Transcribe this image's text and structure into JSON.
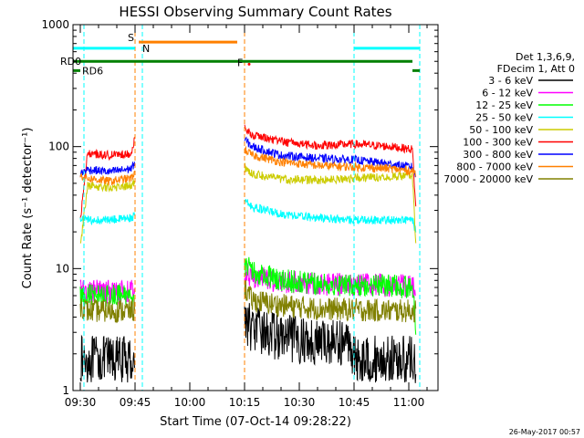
{
  "chart_data": {
    "type": "line",
    "title": "HESSI Observing Summary Count Rates",
    "xlabel": "Start Time (07-Oct-14 09:28:22)",
    "ylabel": "Count Rate (s⁻¹ detector⁻¹)",
    "y_scale": "log",
    "ylim": [
      1,
      1000
    ],
    "xlim": [
      "09:28",
      "11:08"
    ],
    "x_ticks": [
      "09:30",
      "09:45",
      "10:00",
      "10:15",
      "10:30",
      "10:45",
      "11:00"
    ],
    "y_ticks": [
      "1",
      "10",
      "100",
      "1000"
    ],
    "timestamp": "26-May-2017 00:57",
    "legend_header": [
      "Det 1,3,6,9,",
      "FDecim 1, Att 0"
    ],
    "colors": {
      "3 - 6 keV": "#000000",
      "6 - 12 keV": "#ff00ff",
      "12 - 25 keV": "#00ff00",
      "25 - 50 keV": "#00ffff",
      "50 - 100 keV": "#cccc00",
      "100 - 300 keV": "#ff0000",
      "300 - 800 keV": "#0000ff",
      "800 - 7000 keV": "#ff8000",
      "7000 - 20000 keV": "#808000"
    },
    "bars": [
      {
        "label": "S",
        "color": "#ff8000",
        "x_start": "09:46",
        "x_end": "10:13",
        "y": 720
      },
      {
        "label": "N",
        "color": "#00ffff",
        "x_start": "09:28",
        "x_end": "09:45",
        "y": 640
      },
      {
        "label": "N",
        "color": "#00ffff",
        "x_start": "10:45",
        "x_end": "11:03",
        "y": 640
      },
      {
        "label": "RD0",
        "color": "#008000",
        "x_start": "09:28",
        "x_end": "11:01",
        "y": 500
      },
      {
        "label": "RD6",
        "color": "#008000",
        "x_start": "09:28",
        "x_end": "09:30",
        "y": 420
      },
      {
        "label": "RD6",
        "color": "#008000",
        "x_start": "11:01",
        "x_end": "11:03",
        "y": 420
      }
    ],
    "flare_marker": {
      "label": "F",
      "x": "10:16",
      "y": 490
    },
    "vlines": [
      {
        "x": "09:45",
        "color": "#ff8000"
      },
      {
        "x": "10:15",
        "color": "#ff8000"
      },
      {
        "x": "09:31",
        "color": "#00ffff"
      },
      {
        "x": "09:47",
        "color": "#00ffff"
      },
      {
        "x": "10:45",
        "color": "#00ffff"
      },
      {
        "x": "11:03",
        "color": "#00ffff"
      }
    ],
    "series": [
      {
        "name": "3 - 6 keV",
        "color": "#000000",
        "x": [
          "09:30",
          "09:32",
          "09:38",
          "09:44",
          "09:45",
          "10:15",
          "10:17",
          "10:25",
          "10:35",
          "10:44",
          "10:45",
          "10:55",
          "11:01",
          "11:02"
        ],
        "y": [
          1.8,
          1.8,
          1.8,
          1.8,
          1.8,
          4.0,
          3.2,
          2.7,
          2.5,
          2.5,
          1.8,
          1.8,
          1.8,
          1.8
        ]
      },
      {
        "name": "6 - 12 keV",
        "color": "#ff00ff",
        "x": [
          "09:30",
          "09:32",
          "09:38",
          "09:44",
          "09:45",
          "10:15",
          "10:17",
          "10:25",
          "10:35",
          "10:45",
          "10:55",
          "11:01",
          "11:02"
        ],
        "y": [
          6.5,
          6.5,
          6.5,
          6.5,
          6.6,
          9.5,
          8.5,
          7.8,
          7.5,
          7.4,
          7.3,
          7.2,
          6.5
        ]
      },
      {
        "name": "12 - 25 keV",
        "color": "#00ff00",
        "x": [
          "09:30",
          "09:32",
          "09:38",
          "09:44",
          "09:45",
          "10:15",
          "10:17",
          "10:25",
          "10:35",
          "10:45",
          "10:55",
          "11:01",
          "11:02"
        ],
        "y": [
          6.0,
          6.0,
          6.0,
          6.0,
          6.2,
          11.0,
          9.5,
          8.0,
          7.5,
          7.3,
          7.2,
          7.0,
          3.0
        ]
      },
      {
        "name": "25 - 50 keV",
        "color": "#00ffff",
        "x": [
          "09:30",
          "09:32",
          "09:38",
          "09:44",
          "09:45",
          "10:15",
          "10:17",
          "10:25",
          "10:35",
          "10:45",
          "10:55",
          "11:01",
          "11:02"
        ],
        "y": [
          25,
          25,
          25,
          26,
          27,
          36,
          32,
          28,
          26,
          25,
          25,
          25,
          20
        ]
      },
      {
        "name": "50 - 100 keV",
        "color": "#cccc00",
        "x": [
          "09:30",
          "09:32",
          "09:38",
          "09:44",
          "09:45",
          "10:15",
          "10:17",
          "10:25",
          "10:35",
          "10:45",
          "10:55",
          "11:01",
          "11:02"
        ],
        "y": [
          15,
          48,
          46,
          48,
          52,
          68,
          60,
          54,
          53,
          55,
          57,
          58,
          14
        ]
      },
      {
        "name": "100 - 300 keV",
        "color": "#ff0000",
        "x": [
          "09:30",
          "09:32",
          "09:38",
          "09:44",
          "09:45",
          "10:15",
          "10:17",
          "10:25",
          "10:35",
          "10:45",
          "10:55",
          "11:01",
          "11:02"
        ],
        "y": [
          25,
          88,
          85,
          88,
          120,
          140,
          125,
          110,
          102,
          105,
          100,
          95,
          28
        ]
      },
      {
        "name": "300 - 800 keV",
        "color": "#0000ff",
        "x": [
          "09:30",
          "09:32",
          "09:38",
          "09:44",
          "09:45",
          "10:15",
          "10:17",
          "10:25",
          "10:35",
          "10:45",
          "10:55",
          "11:01",
          "11:02"
        ],
        "y": [
          60,
          65,
          62,
          66,
          75,
          115,
          100,
          85,
          80,
          78,
          72,
          68,
          56
        ]
      },
      {
        "name": "800 - 7000 keV",
        "color": "#ff8000",
        "x": [
          "09:30",
          "09:32",
          "09:38",
          "09:44",
          "09:45",
          "10:15",
          "10:17",
          "10:25",
          "10:35",
          "10:45",
          "10:55",
          "11:01",
          "11:02"
        ],
        "y": [
          58,
          55,
          52,
          55,
          62,
          95,
          85,
          75,
          70,
          68,
          66,
          63,
          60
        ]
      },
      {
        "name": "7000 - 20000 keV",
        "color": "#808000",
        "x": [
          "09:30",
          "09:32",
          "09:38",
          "09:44",
          "09:45",
          "10:15",
          "10:17",
          "10:25",
          "10:35",
          "10:45",
          "10:55",
          "11:01",
          "11:02"
        ],
        "y": [
          5.0,
          4.5,
          4.5,
          4.5,
          4.6,
          7.0,
          5.5,
          5.0,
          4.7,
          4.6,
          4.5,
          4.5,
          4.5
        ]
      }
    ]
  }
}
